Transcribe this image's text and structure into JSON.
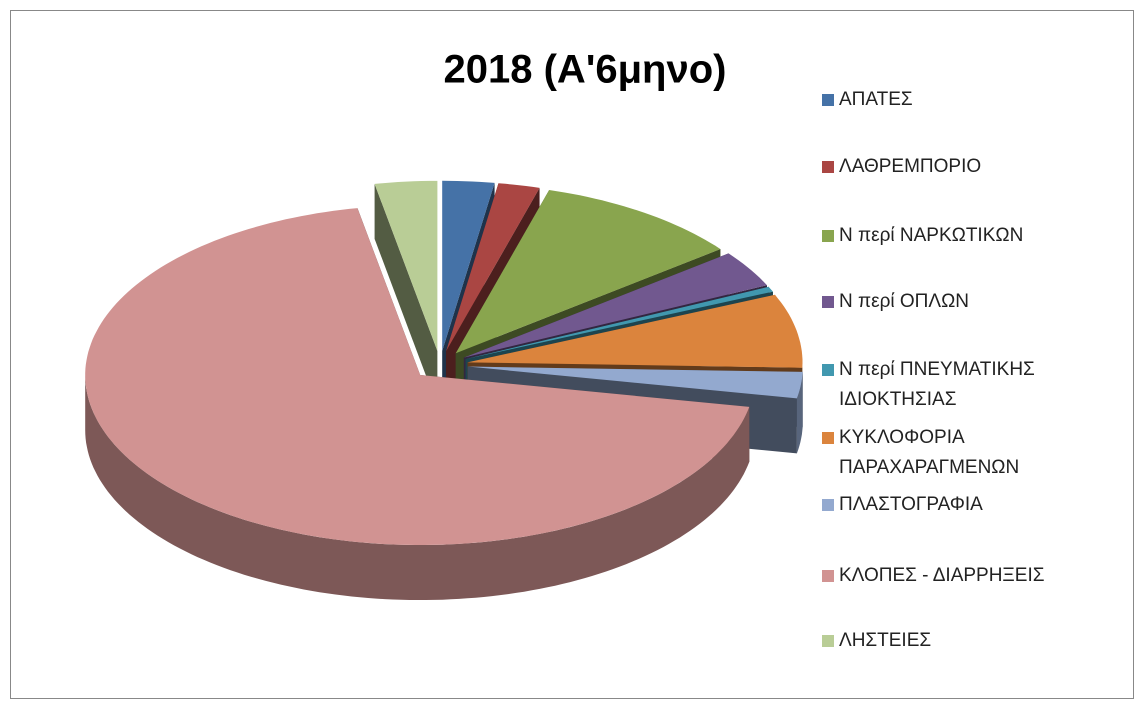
{
  "chart_data": {
    "type": "pie",
    "title": "2018 (Α'6μηνο)",
    "categories": [
      "ΑΠΑΤΕΣ",
      "ΛΑΘΡΕΜΠΟΡΙΟ",
      "Ν περί ΝΑΡΚΩΤΙΚΩΝ",
      "Ν περί ΟΠΛΩΝ",
      "Ν περί ΠΝΕΥΜΑΤΙΚΗΣ ΙΔΙΟΚΤΗΣΙΑΣ",
      "ΚΥΚΛΟΦΟΡΙΑ ΠΑΡΑΧΑΡΑΓΜΕΝΩΝ",
      "ΠΛΑΣΤΟΓΡΑΦΙΑ",
      "ΚΛΟΠΕΣ - ΔΙΑΡΡΗΞΕΙΣ",
      "ΛΗΣΤΕΙΕΣ"
    ],
    "values": [
      2.5,
      2,
      10,
      3.5,
      0.5,
      7,
      2.5,
      69,
      3
    ],
    "colors": [
      "#4572a7",
      "#aa4643",
      "#89a54e",
      "#71588f",
      "#4198af",
      "#db843d",
      "#93a9cf",
      "#d19392",
      "#b9cd96"
    ],
    "legend": "right"
  }
}
